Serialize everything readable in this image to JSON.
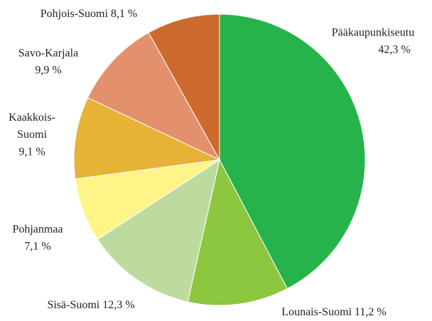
{
  "chart_data": {
    "type": "pie",
    "categories": [
      "Pääkaupunkiseutu",
      "Lounais-Suomi",
      "Sisä-Suomi",
      "Pohjanmaa",
      "Kaakkois-Suomi",
      "Savo-Karjala",
      "Pohjois-Suomi"
    ],
    "values": [
      42.3,
      11.2,
      12.3,
      7.1,
      9.1,
      9.9,
      8.1
    ],
    "value_labels": [
      "42,3 %",
      "11,2 %",
      "12,3 %",
      "7,1 %",
      "9,1 %",
      "9,9 %",
      "8,1 %"
    ],
    "colors": [
      "#27b34b",
      "#8dc63f",
      "#bddb9f",
      "#fef487",
      "#e6b337",
      "#e3916c",
      "#cc6a2e"
    ]
  }
}
